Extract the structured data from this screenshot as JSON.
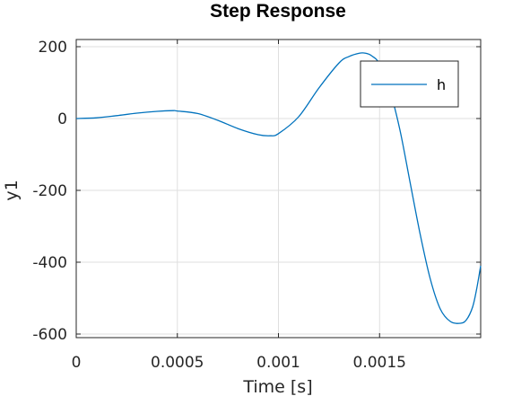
{
  "chart_data": {
    "type": "line",
    "title": "Step Response",
    "xlabel": "Time [s]",
    "ylabel": "y1",
    "xlim": [
      0,
      0.002
    ],
    "ylim": [
      -610,
      220
    ],
    "xticks": [
      0,
      0.0005,
      0.001,
      0.0015
    ],
    "xtick_labels": [
      "0",
      "0.0005",
      "0.001",
      "0.0015"
    ],
    "yticks": [
      200,
      0,
      -200,
      -400,
      -600
    ],
    "ytick_labels": [
      "200",
      "0",
      "-200",
      "-400",
      "-600"
    ],
    "grid": true,
    "legend": {
      "position": "top-right",
      "entries": [
        "h"
      ]
    },
    "series": [
      {
        "name": "h",
        "color": "#0072bd",
        "x": [
          0,
          0.0001,
          0.0002,
          0.0003,
          0.0004,
          0.00048,
          0.0005,
          0.0006,
          0.0007,
          0.0008,
          0.0009,
          0.00096,
          0.001,
          0.0011,
          0.0012,
          0.0013,
          0.00135,
          0.0014,
          0.00143,
          0.00146,
          0.0015,
          0.00155,
          0.0016,
          0.00165,
          0.0017,
          0.00175,
          0.0018,
          0.00185,
          0.0019,
          0.00193,
          0.00196,
          0.00198,
          0.002
        ],
        "y": [
          0,
          2,
          8,
          15,
          20,
          22,
          21,
          14,
          -5,
          -28,
          -45,
          -48,
          -42,
          5,
          85,
          155,
          173,
          182,
          182,
          175,
          152,
          80,
          -30,
          -175,
          -320,
          -445,
          -530,
          -565,
          -570,
          -560,
          -525,
          -475,
          -410
        ]
      }
    ]
  }
}
